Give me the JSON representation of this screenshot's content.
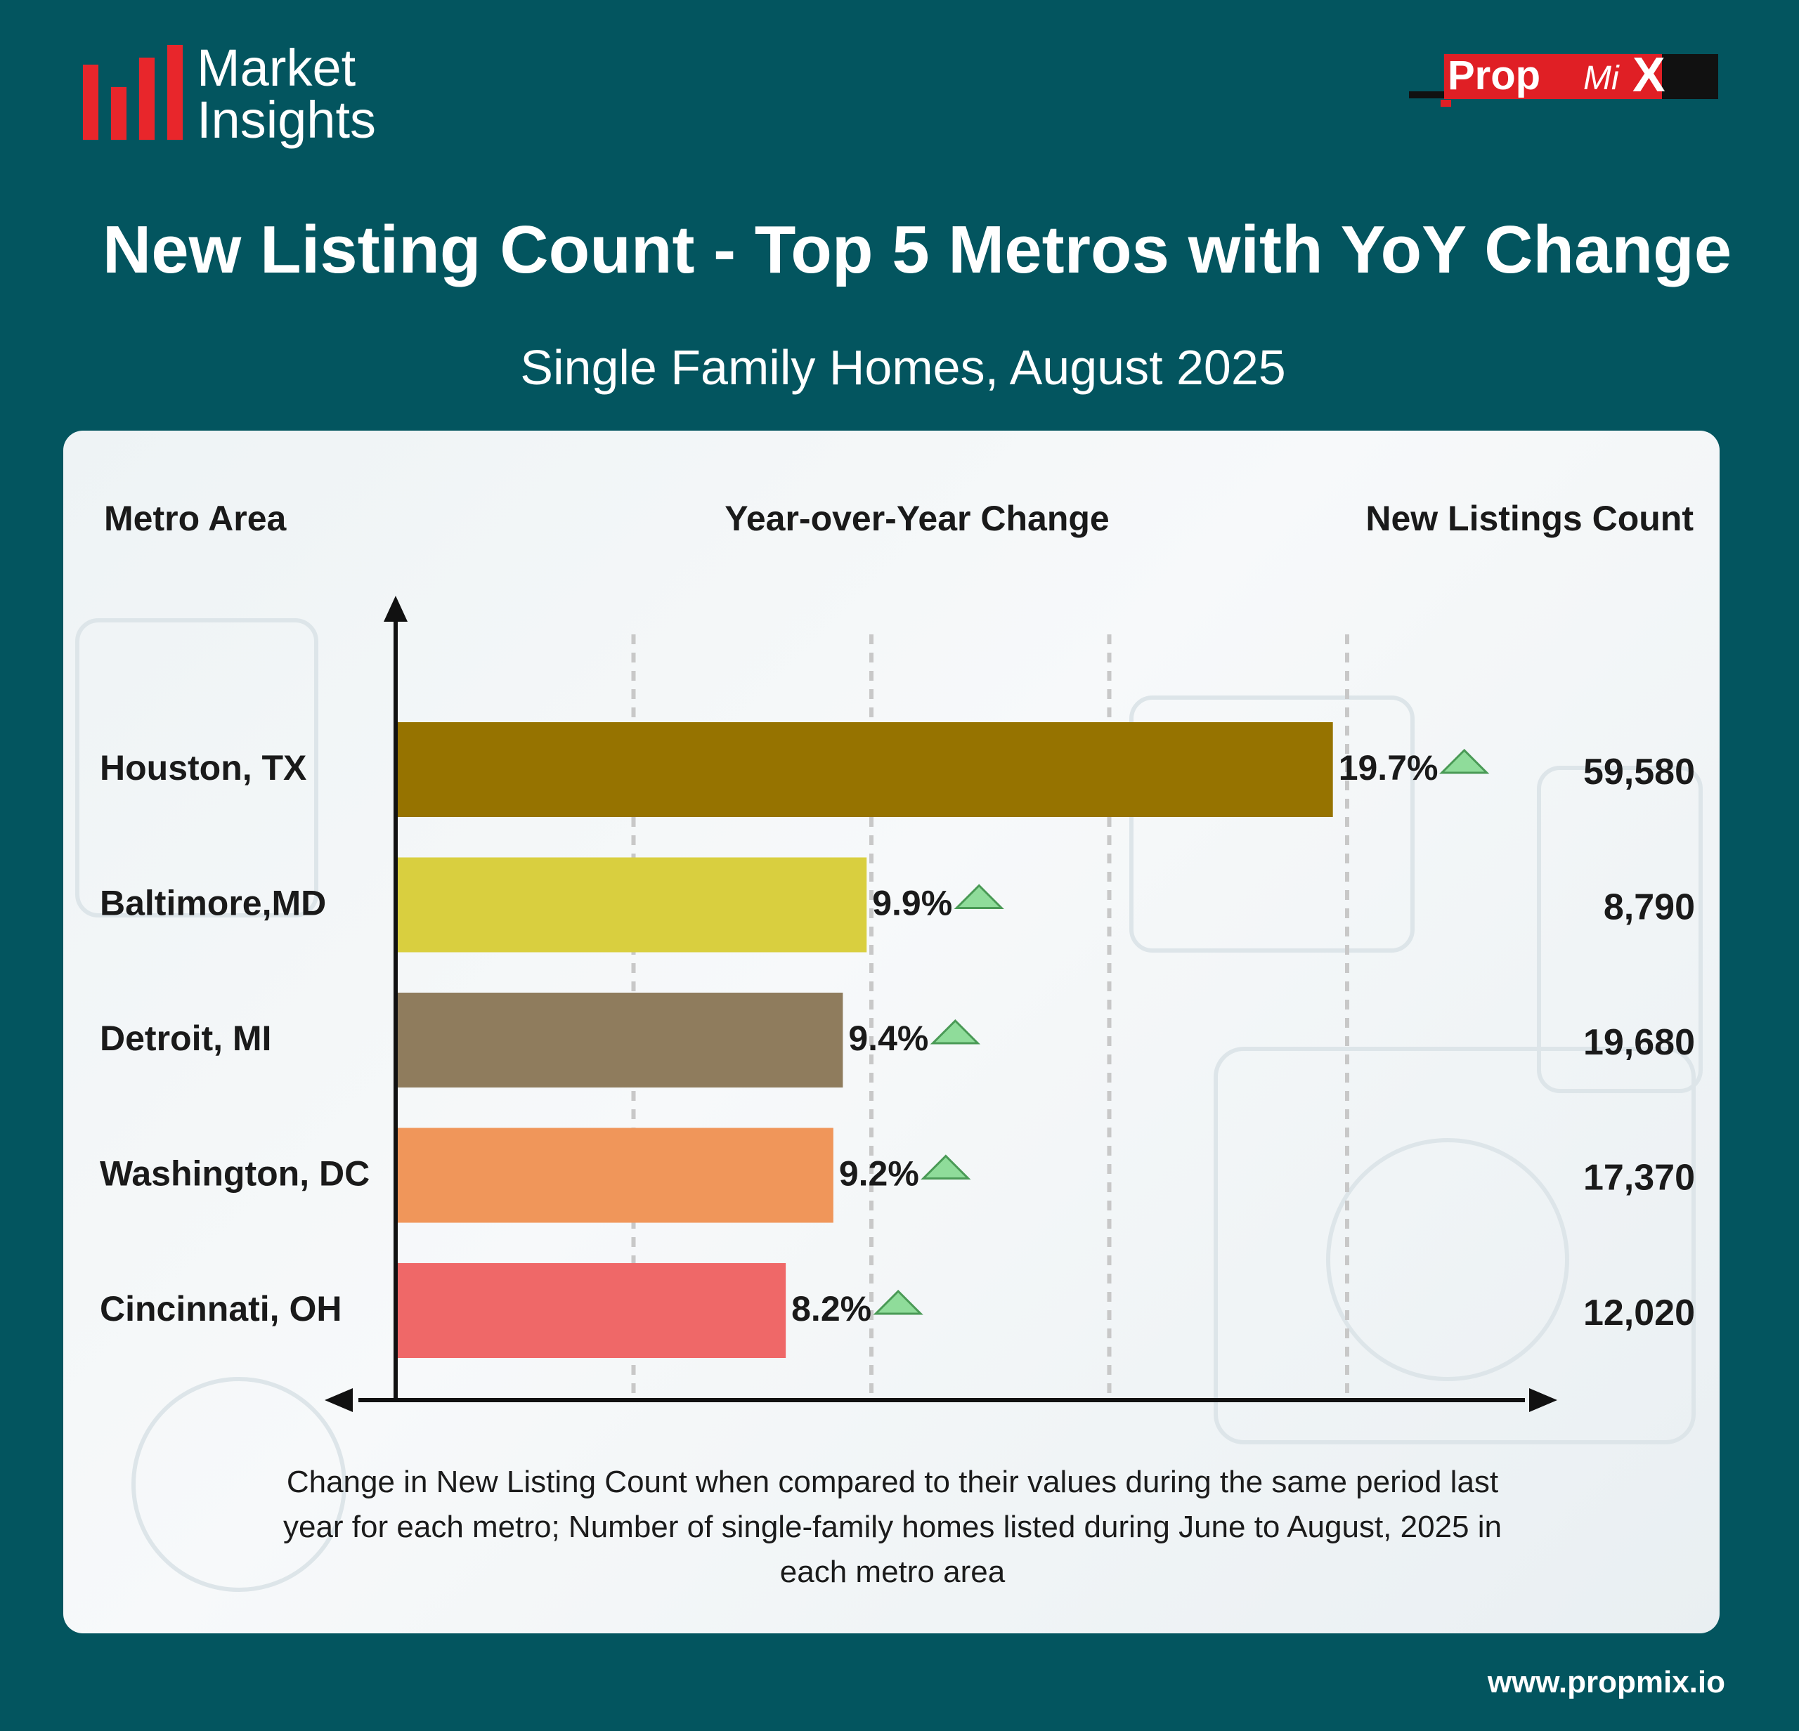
{
  "header": {
    "logo_line1": "Market",
    "logo_line2": "Insights",
    "brand_prefix": "Prop",
    "brand_mi": "Mi",
    "brand_x": "X",
    "website": "www.propmix.io"
  },
  "colors": {
    "background": "#03555f",
    "logo_red": "#e8262b",
    "up_arrow": "#8fdc9a"
  },
  "chart_data": {
    "type": "bar",
    "title": "New Listing Count - Top 5 Metros with YoY Change",
    "subtitle": "Single Family Homes, August 2025",
    "column_headers": {
      "metro": "Metro Area",
      "change": "Year-over-Year Change",
      "count": "New Listings Count"
    },
    "categories": [
      "Houston, TX",
      "Baltimore,MD",
      "Detroit, MI",
      "Washington, DC",
      "Cincinnati, OH"
    ],
    "values": [
      19.7,
      9.9,
      9.4,
      9.2,
      8.2
    ],
    "value_labels": [
      "19.7%",
      "9.9%",
      "9.4%",
      "9.2%",
      "8.2%"
    ],
    "counts": [
      "59,580",
      "8,790",
      "19,680",
      "17,370",
      "12,020"
    ],
    "bar_colors": [
      "#967300",
      "#d9cf3f",
      "#8f7c5d",
      "#f0965a",
      "#ef6868"
    ],
    "xlim": [
      0,
      20
    ],
    "grid": true,
    "footnote": "Change in New Listing Count when compared to their values during the same period last year for each metro; Number of single-family homes listed during June to August, 2025 in each metro area"
  }
}
